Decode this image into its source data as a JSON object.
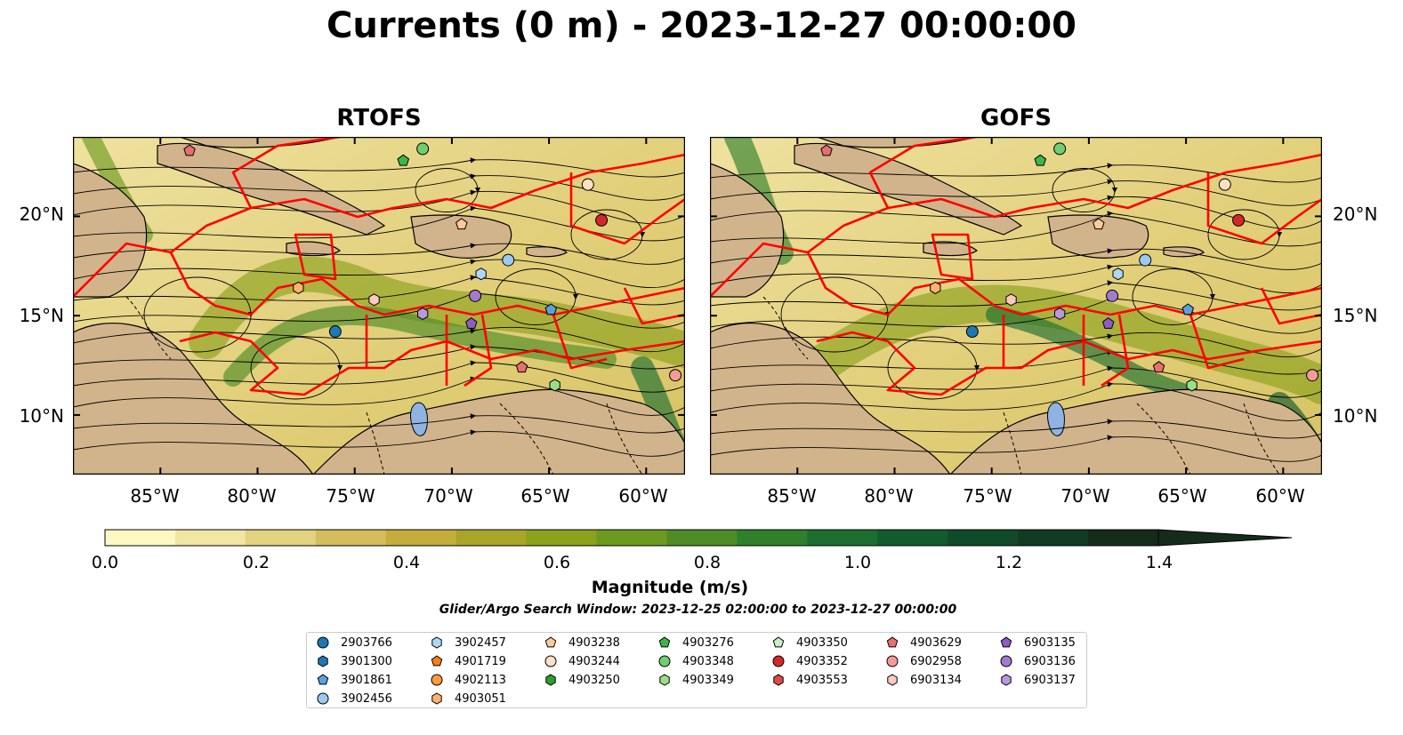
{
  "title": "Currents (0 m) - 2023-12-27 00:00:00",
  "panels": [
    {
      "title": "RTOFS"
    },
    {
      "title": "GOFS"
    }
  ],
  "lat_ticks": [
    "20°N",
    "15°N",
    "10°N"
  ],
  "lon_ticks": [
    "85°W",
    "80°W",
    "75°W",
    "70°W",
    "65°W",
    "60°W"
  ],
  "colorbar": {
    "label": "Magnitude (m/s)",
    "ticks": [
      "0.0",
      "0.2",
      "0.4",
      "0.6",
      "0.8",
      "1.0",
      "1.2",
      "1.4"
    ],
    "range": [
      0,
      1.5
    ],
    "extend": "max",
    "colors": [
      "#fdf7c4",
      "#f1e6a4",
      "#e3d27f",
      "#d4be5c",
      "#c3ad3c",
      "#a8a52a",
      "#8ca11d",
      "#6b9a1e",
      "#4e8c25",
      "#2f7f2b",
      "#1c6e31",
      "#135b2e",
      "#114a28",
      "#123b22",
      "#152c1b"
    ]
  },
  "search_window": "Glider/Argo Search Window: 2023-12-25 02:00:00 to 2023-12-27 00:00:00",
  "legend": [
    {
      "id": "2903766",
      "marker": "circle",
      "color": "#1f77b4"
    },
    {
      "id": "3901300",
      "marker": "hexagon",
      "color": "#1f77b4"
    },
    {
      "id": "3901861",
      "marker": "pentagon",
      "color": "#5aa2dc"
    },
    {
      "id": "3902456",
      "marker": "circle",
      "color": "#9cc9ee"
    },
    {
      "id": "3902457",
      "marker": "hexagon",
      "color": "#aed6f5"
    },
    {
      "id": "4901719",
      "marker": "pentagon",
      "color": "#ff7f0e"
    },
    {
      "id": "4902113",
      "marker": "circle",
      "color": "#ff9a3c"
    },
    {
      "id": "4903051",
      "marker": "hexagon",
      "color": "#ffb26b"
    },
    {
      "id": "4903238",
      "marker": "pentagon",
      "color": "#ffc999"
    },
    {
      "id": "4903244",
      "marker": "circle",
      "color": "#ffe0c4"
    },
    {
      "id": "4903250",
      "marker": "hexagon",
      "color": "#2ca02c"
    },
    {
      "id": "4903276",
      "marker": "pentagon",
      "color": "#3cb64a"
    },
    {
      "id": "4903348",
      "marker": "circle",
      "color": "#6fcf6f"
    },
    {
      "id": "4903349",
      "marker": "hexagon",
      "color": "#98df8a"
    },
    {
      "id": "4903350",
      "marker": "pentagon",
      "color": "#c8f0c0"
    },
    {
      "id": "4903352",
      "marker": "circle",
      "color": "#d62728"
    },
    {
      "id": "4903553",
      "marker": "hexagon",
      "color": "#e04848"
    },
    {
      "id": "4903629",
      "marker": "pentagon",
      "color": "#e86f6f"
    },
    {
      "id": "6902958",
      "marker": "circle",
      "color": "#f59a9a"
    },
    {
      "id": "6903134",
      "marker": "hexagon",
      "color": "#fcc8c0"
    },
    {
      "id": "6903135",
      "marker": "pentagon",
      "color": "#8e5cc4"
    },
    {
      "id": "6903136",
      "marker": "circle",
      "color": "#a27ad0"
    },
    {
      "id": "6903137",
      "marker": "hexagon",
      "color": "#b899e0"
    }
  ],
  "map": {
    "lon_range": [
      -89.5,
      -58.0
    ],
    "lat_range": [
      7.0,
      24.0
    ],
    "land_color": "#d2b48c",
    "boundary_color": "#ff0000",
    "floats": [
      {
        "id": "4903629",
        "lon": -83.5,
        "lat": 23.3
      },
      {
        "id": "4903348",
        "lon": -71.5,
        "lat": 23.4
      },
      {
        "id": "4903276",
        "lon": -72.5,
        "lat": 22.8
      },
      {
        "id": "4903244",
        "lon": -63.0,
        "lat": 21.6
      },
      {
        "id": "4903238",
        "lon": -69.5,
        "lat": 19.6
      },
      {
        "id": "4903352",
        "lon": -62.3,
        "lat": 19.8
      },
      {
        "id": "3902456",
        "lon": -67.1,
        "lat": 17.8
      },
      {
        "id": "3902457",
        "lon": -68.5,
        "lat": 17.1
      },
      {
        "id": "4903051",
        "lon": -77.9,
        "lat": 16.4
      },
      {
        "id": "6903134",
        "lon": -74.0,
        "lat": 15.8
      },
      {
        "id": "6903136",
        "lon": -68.8,
        "lat": 16.0
      },
      {
        "id": "3901861",
        "lon": -64.9,
        "lat": 15.3
      },
      {
        "id": "6903137",
        "lon": -71.5,
        "lat": 15.1
      },
      {
        "id": "6903135",
        "lon": -69.0,
        "lat": 14.6
      },
      {
        "id": "2903766",
        "lon": -76.0,
        "lat": 14.2
      },
      {
        "id": "4903629",
        "lon": -66.4,
        "lat": 12.4
      },
      {
        "id": "4903349",
        "lon": -64.7,
        "lat": 11.5
      },
      {
        "id": "6902958",
        "lon": -58.5,
        "lat": 12.0
      }
    ]
  }
}
